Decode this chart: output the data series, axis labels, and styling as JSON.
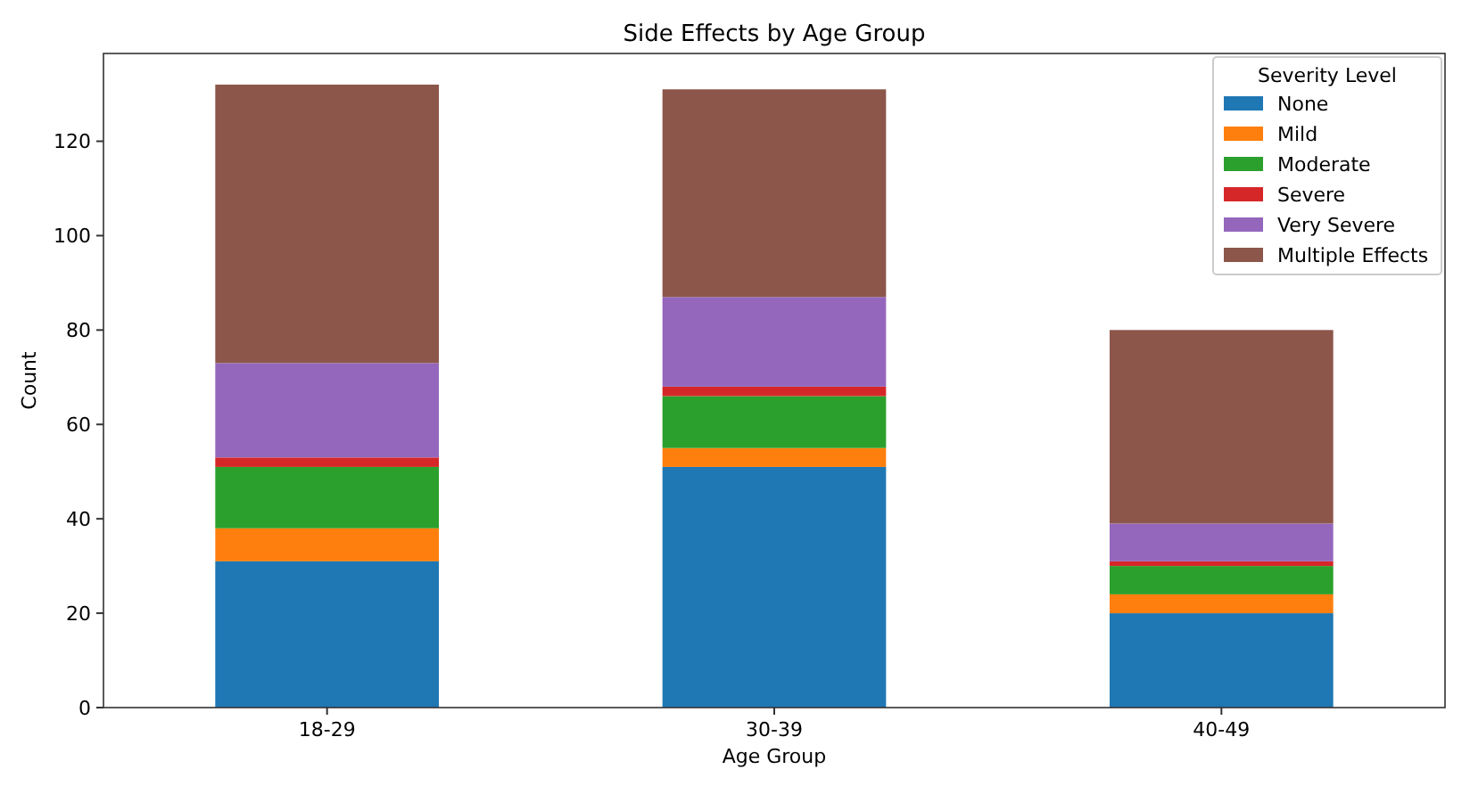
{
  "chart_data": {
    "type": "bar",
    "title": "Side Effects by Age Group",
    "xlabel": "Age Group",
    "ylabel": "Count",
    "legend_title": "Severity Level",
    "legend": "top right",
    "stacked": true,
    "categories": [
      "18-29",
      "30-39",
      "40-49"
    ],
    "ylim": [
      0,
      138.6
    ],
    "yticks": [
      0,
      20,
      40,
      60,
      80,
      100,
      120
    ],
    "series": [
      {
        "name": "None",
        "color": "#1f77b4",
        "values": [
          31,
          51,
          20
        ]
      },
      {
        "name": "Mild",
        "color": "#ff7f0e",
        "values": [
          7,
          4,
          4
        ]
      },
      {
        "name": "Moderate",
        "color": "#2ca02c",
        "values": [
          13,
          11,
          6
        ]
      },
      {
        "name": "Severe",
        "color": "#d62728",
        "values": [
          2,
          2,
          1
        ]
      },
      {
        "name": "Very Severe",
        "color": "#9467bd",
        "values": [
          20,
          19,
          8
        ]
      },
      {
        "name": "Multiple Effects",
        "color": "#8c564b",
        "values": [
          59,
          44,
          41
        ]
      }
    ]
  }
}
